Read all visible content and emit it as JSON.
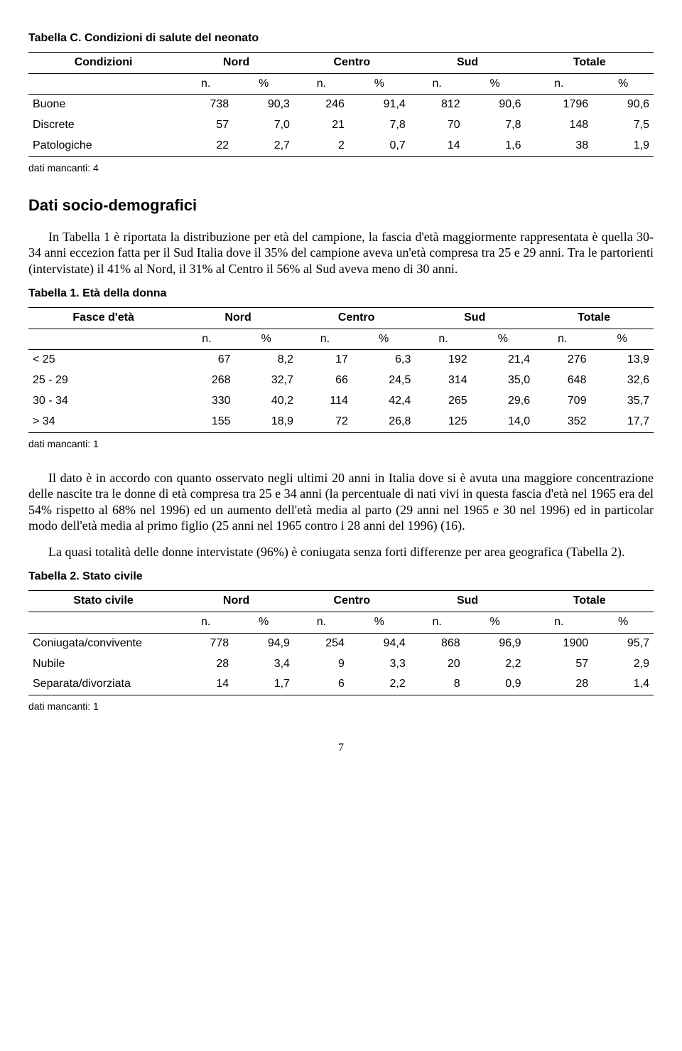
{
  "tableC": {
    "title": "Tabella C. Condizioni di salute del neonato",
    "row_label": "Condizioni",
    "headers": [
      "Nord",
      "Centro",
      "Sud",
      "Totale"
    ],
    "subheaders": [
      "n.",
      "%",
      "n.",
      "%",
      "n.",
      "%",
      "n.",
      "%"
    ],
    "rows": [
      {
        "label": "Buone",
        "cells": [
          "738",
          "90,3",
          "246",
          "91,4",
          "812",
          "90,6",
          "1796",
          "90,6"
        ]
      },
      {
        "label": "Discrete",
        "cells": [
          "57",
          "7,0",
          "21",
          "7,8",
          "70",
          "7,8",
          "148",
          "7,5"
        ]
      },
      {
        "label": "Patologiche",
        "cells": [
          "22",
          "2,7",
          "2",
          "0,7",
          "14",
          "1,6",
          "38",
          "1,9"
        ]
      }
    ],
    "footnote": "dati mancanti: 4"
  },
  "section_title": "Dati socio-demografici",
  "para1": "In Tabella 1 è riportata la distribuzione per età del campione, la fascia d'età maggiormente rappresentata è quella 30-34 anni eccezion fatta per il Sud Italia dove il 35% del campione aveva un'età compresa tra 25 e 29 anni. Tra le partorienti (intervistate) il 41% al Nord, il 31% al Centro il 56% al Sud aveva meno di 30 anni.",
  "table1": {
    "title": "Tabella 1. Età della donna",
    "row_label": "Fasce d'età",
    "headers": [
      "Nord",
      "Centro",
      "Sud",
      "Totale"
    ],
    "subheaders": [
      "n.",
      "%",
      "n.",
      "%",
      "n.",
      "%",
      "n.",
      "%"
    ],
    "rows": [
      {
        "label": "< 25",
        "cells": [
          "67",
          "8,2",
          "17",
          "6,3",
          "192",
          "21,4",
          "276",
          "13,9"
        ]
      },
      {
        "label": "25 - 29",
        "cells": [
          "268",
          "32,7",
          "66",
          "24,5",
          "314",
          "35,0",
          "648",
          "32,6"
        ]
      },
      {
        "label": "30 - 34",
        "cells": [
          "330",
          "40,2",
          "114",
          "42,4",
          "265",
          "29,6",
          "709",
          "35,7"
        ]
      },
      {
        "label": "> 34",
        "cells": [
          "155",
          "18,9",
          "72",
          "26,8",
          "125",
          "14,0",
          "352",
          "17,7"
        ]
      }
    ],
    "footnote": "dati mancanti: 1"
  },
  "para2": "Il dato è in accordo con quanto osservato negli ultimi 20 anni in Italia dove si è avuta una maggiore concentrazione delle nascite tra le donne di età compresa tra 25 e 34 anni (la percentuale di nati vivi in questa fascia d'età nel 1965 era del 54% rispetto al 68% nel 1996) ed un aumento dell'età media al parto (29 anni nel 1965 e 30 nel 1996) ed in particolar modo dell'età media al primo figlio (25 anni nel 1965 contro i 28 anni del 1996) (16).",
  "para3": "La quasi totalità delle donne intervistate (96%) è coniugata senza forti differenze per area geografica (Tabella 2).",
  "table2": {
    "title": "Tabella 2. Stato civile",
    "row_label": "Stato civile",
    "headers": [
      "Nord",
      "Centro",
      "Sud",
      "Totale"
    ],
    "subheaders": [
      "n.",
      "%",
      "n.",
      "%",
      "n.",
      "%",
      "n.",
      "%"
    ],
    "rows": [
      {
        "label": "Coniugata/convivente",
        "cells": [
          "778",
          "94,9",
          "254",
          "94,4",
          "868",
          "96,9",
          "1900",
          "95,7"
        ]
      },
      {
        "label": "Nubile",
        "cells": [
          "28",
          "3,4",
          "9",
          "3,3",
          "20",
          "2,2",
          "57",
          "2,9"
        ]
      },
      {
        "label": "Separata/divorziata",
        "cells": [
          "14",
          "1,7",
          "6",
          "2,2",
          "8",
          "0,9",
          "28",
          "1,4"
        ]
      }
    ],
    "footnote": "dati mancanti: 1"
  },
  "page_number": "7"
}
